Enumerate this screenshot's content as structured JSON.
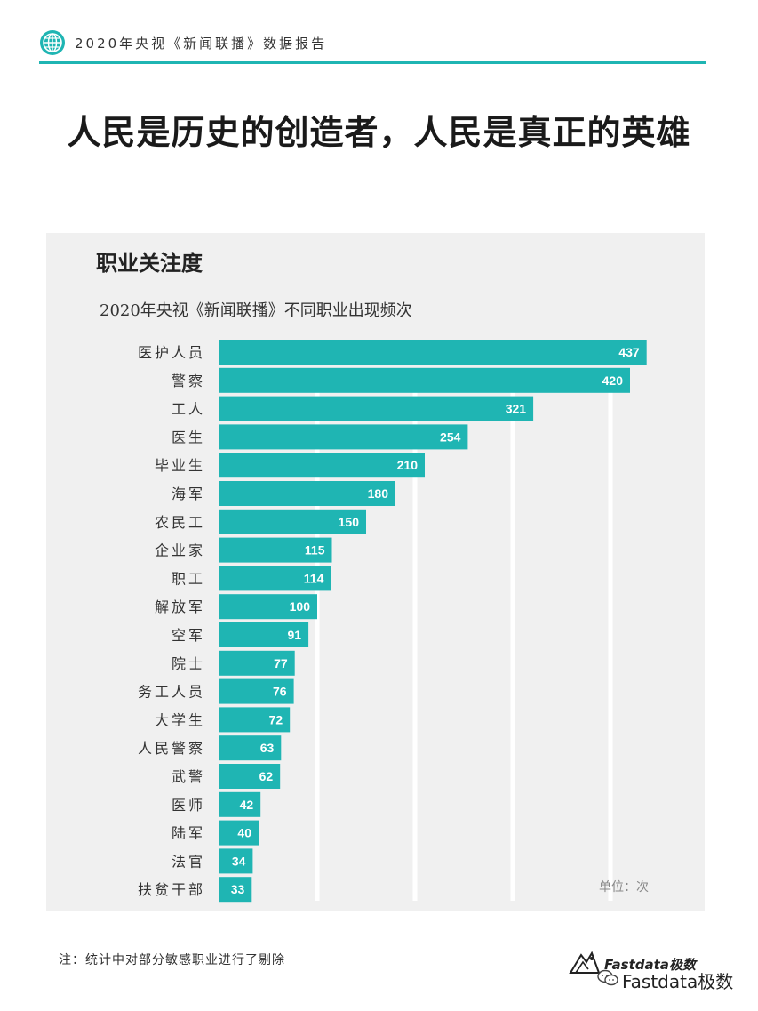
{
  "header": {
    "title": "2020年央视《新闻联播》数据报告"
  },
  "main_title": "人民是历史的创造者，人民是真正的英雄",
  "panel": {
    "title": "职业关注度",
    "subtitle": "2020年央视《新闻联播》不同职业出现频次",
    "unit": "单位：次"
  },
  "footnote": "注：统计中对部分敏感职业进行了剔除",
  "brand": {
    "name": "Fastdata极数"
  },
  "watermark": {
    "name": "Fastdata极数"
  },
  "colors": {
    "accent": "#1fb5b3",
    "panel_bg": "#f0f0f0",
    "gridline": "#ffffff"
  },
  "chart_data": {
    "type": "bar",
    "orientation": "horizontal",
    "title": "职业关注度",
    "subtitle": "2020年央视《新闻联播》不同职业出现频次",
    "unit": "单位：次",
    "categories": [
      "医护人员",
      "警察",
      "工人",
      "医生",
      "毕业生",
      "海军",
      "农民工",
      "企业家",
      "职工",
      "解放军",
      "空军",
      "院士",
      "务工人员",
      "大学生",
      "人民警察",
      "武警",
      "医师",
      "陆军",
      "法官",
      "扶贫干部"
    ],
    "values": [
      437,
      420,
      321,
      254,
      210,
      180,
      150,
      115,
      114,
      100,
      91,
      77,
      76,
      72,
      63,
      62,
      42,
      40,
      34,
      33
    ],
    "xlim": [
      0,
      500
    ],
    "grid": true,
    "data_labels": true
  }
}
